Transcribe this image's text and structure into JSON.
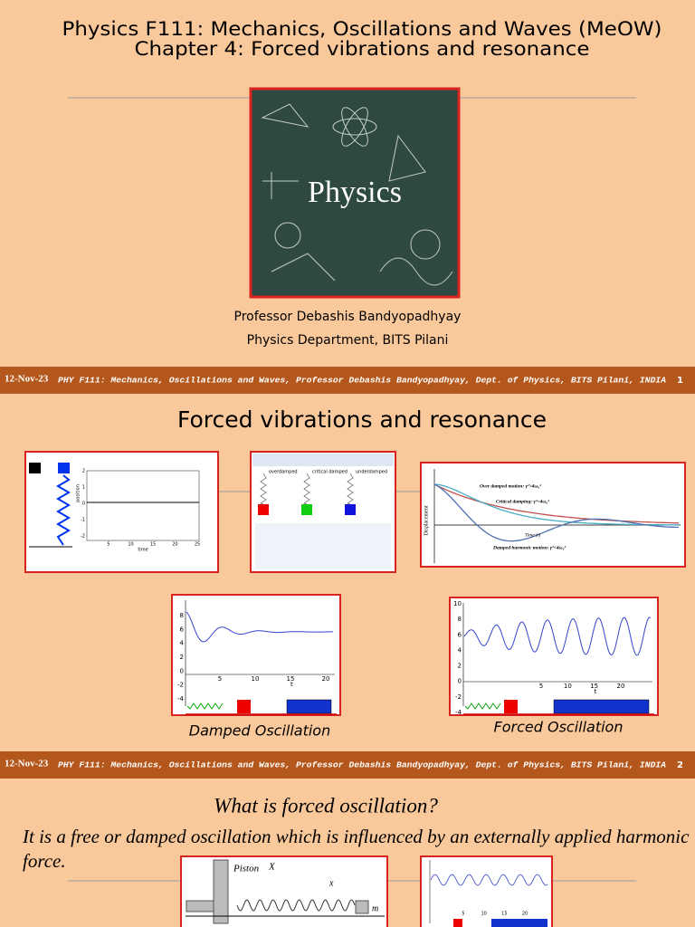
{
  "slides": [
    {
      "title": [
        "Physics F111: Mechanics, Oscillations and Waves (MeOW)",
        "Chapter 4: Forced vibrations and resonance"
      ],
      "cover_image": {
        "label": "Physics"
      },
      "author": "Professor Debashis Bandyopadhyay",
      "department": "Physics Department, BITS Pilani",
      "footer": {
        "date": "12-Nov-23",
        "text": "PHY F111: Mechanics, Oscillations and Waves, Professor Debashis Bandyopadhyay, Dept. of Physics, BITS Pilani, INDIA",
        "page": "1"
      }
    },
    {
      "title": "Forced vibrations and resonance",
      "figures": [
        {
          "y_label": "position",
          "x_label": "time",
          "yticks": [
            2,
            1,
            0,
            -1,
            -2
          ],
          "xticks": [
            5,
            10,
            15,
            20,
            25
          ]
        },
        {
          "modes": [
            "overdamped",
            "critical damped",
            "underdamped"
          ]
        },
        {
          "legend": [
            "Over damped motion: γ²>4ω₀²",
            "Critical damping: γ²=4ω₀²",
            "Damped harmonic motion: γ²<4ω₀²"
          ],
          "y_label": "Displacement",
          "x_label": "Time (t)"
        },
        {
          "caption": "Damped Oscillation",
          "yticks": [
            8,
            6,
            4,
            2,
            0,
            -2,
            -4
          ],
          "xticks": [
            5,
            10,
            15,
            20
          ],
          "x_label": "t"
        },
        {
          "caption": "Forced Oscillation",
          "yticks": [
            10,
            8,
            6,
            4,
            2,
            0,
            -2,
            -4
          ],
          "xticks": [
            5,
            10,
            15,
            20
          ],
          "x_label": "t"
        }
      ],
      "footer": {
        "date": "12-Nov-23",
        "text": "PHY F111: Mechanics, Oscillations and Waves, Professor Debashis Bandyopadhyay, Dept. of Physics, BITS Pilani, INDIA",
        "page": "2"
      }
    },
    {
      "title": "What is forced oscillation?",
      "body": "It is a free or damped oscillation which is influenced by an externally applied harmonic force.",
      "figure": {
        "labels": [
          "Piston",
          "X",
          "x",
          "m"
        ],
        "xticks": [
          5,
          10,
          15,
          20
        ]
      }
    }
  ]
}
